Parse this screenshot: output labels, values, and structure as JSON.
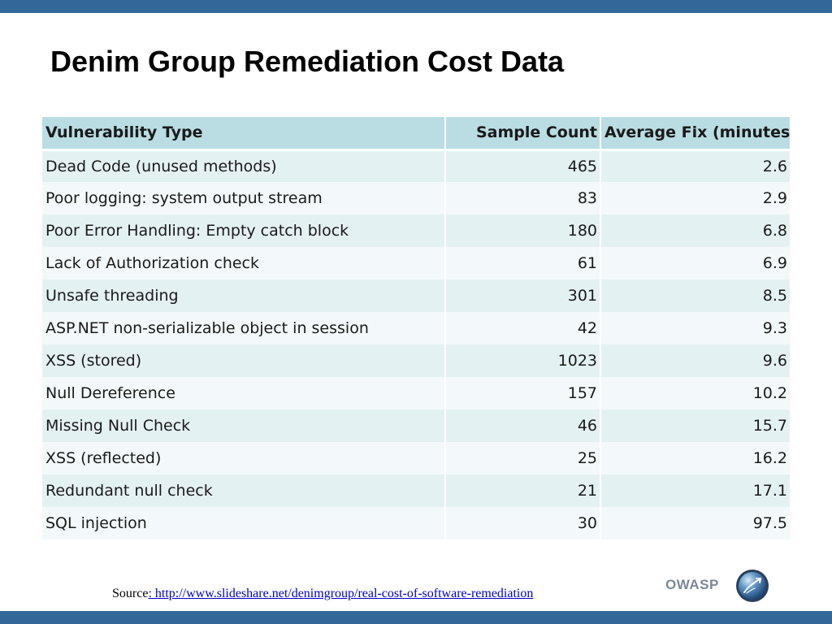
{
  "slide": {
    "title": "Denim Group Remediation Cost Data",
    "accent_color": "#336699"
  },
  "table": {
    "headers": [
      "Vulnerability Type",
      "Sample Count",
      "Average Fix (minutes)"
    ],
    "rows": [
      [
        "Dead Code (unused methods)",
        "465",
        "2.6"
      ],
      [
        "Poor logging: system output stream",
        "83",
        "2.9"
      ],
      [
        "Poor Error Handling: Empty catch block",
        "180",
        "6.8"
      ],
      [
        "Lack of Authorization check",
        "61",
        "6.9"
      ],
      [
        "Unsafe threading",
        "301",
        "8.5"
      ],
      [
        "ASP.NET non-serializable object in session",
        "42",
        "9.3"
      ],
      [
        "XSS (stored)",
        "1023",
        "9.6"
      ],
      [
        "Null Dereference",
        "157",
        "10.2"
      ],
      [
        "Missing Null Check",
        "46",
        "15.7"
      ],
      [
        "XSS (reflected)",
        "25",
        "16.2"
      ],
      [
        "Redundant null check",
        "21",
        "17.1"
      ],
      [
        "SQL injection",
        "30",
        "97.5"
      ]
    ],
    "header_color": "#b9dde2"
  },
  "footer": {
    "source_label": "Source",
    "source_link": ": http://www.slideshare.net/denimgroup/real-cost-of-software-remediation",
    "brand": "OWASP",
    "logo_icon": "owasp-globe-icon"
  }
}
